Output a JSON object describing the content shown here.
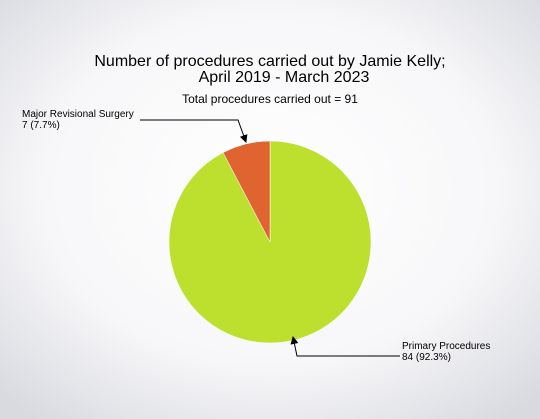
{
  "chart_data": {
    "type": "pie",
    "title": [
      "Number of procedures carried out by Jamie Kelly;",
      "April 2019 - March 2023"
    ],
    "subtitle": "Total procedures carried out = 91",
    "categories": [
      "Primary Procedures",
      "Major Revisional Surgery"
    ],
    "values": [
      84,
      7
    ],
    "value_labels": [
      "84 (92.3%)",
      "7 (7.7%)"
    ],
    "colors": [
      "#bde02e",
      "#e06430"
    ]
  }
}
